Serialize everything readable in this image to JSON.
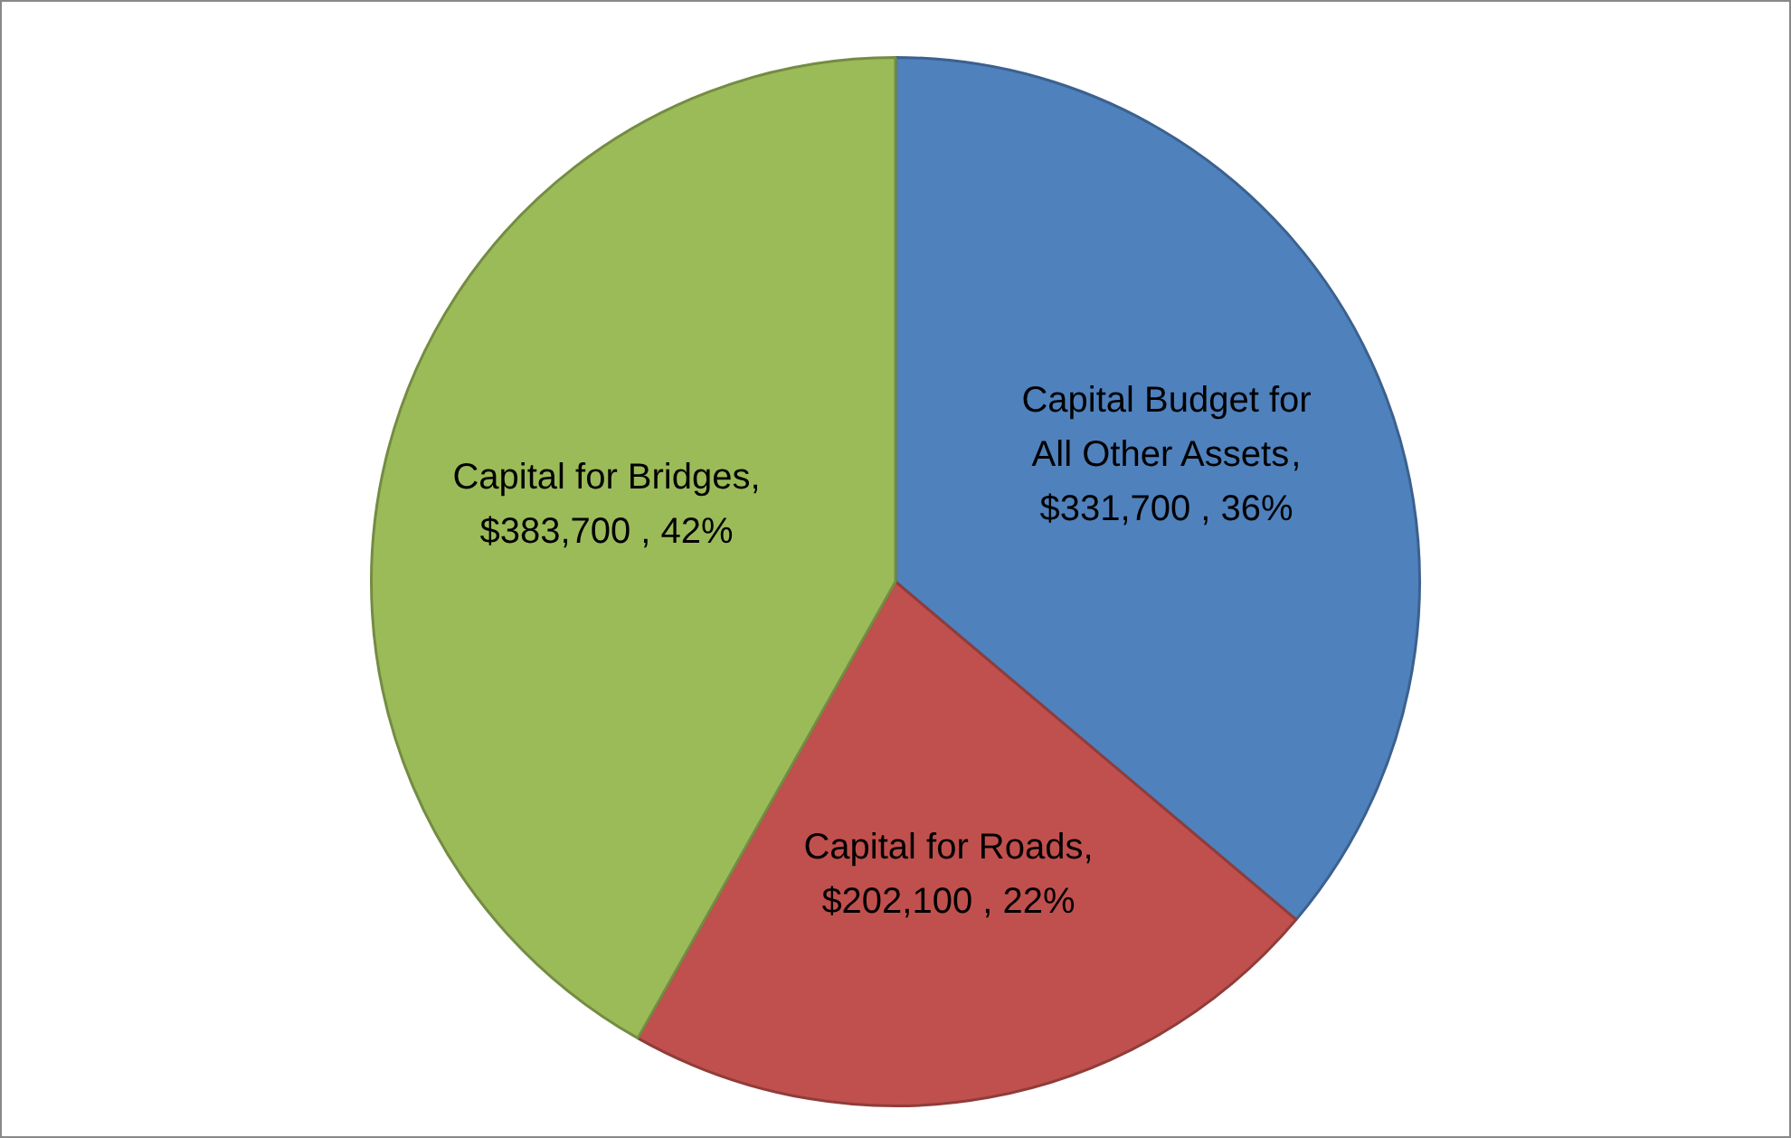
{
  "chart_data": {
    "type": "pie",
    "categories": [
      "Capital Budget for All Other Assets",
      "Capital for Roads",
      "Capital for Bridges"
    ],
    "values": [
      331700,
      202100,
      383700
    ],
    "colors": [
      "#4f81bd",
      "#c0504d",
      "#9bbb59"
    ],
    "value_labels": [
      ",\n$331,700 , 36%",
      ",\n$202,100 , 22%",
      ",\n$383,700 , 42%"
    ],
    "legend": false
  }
}
